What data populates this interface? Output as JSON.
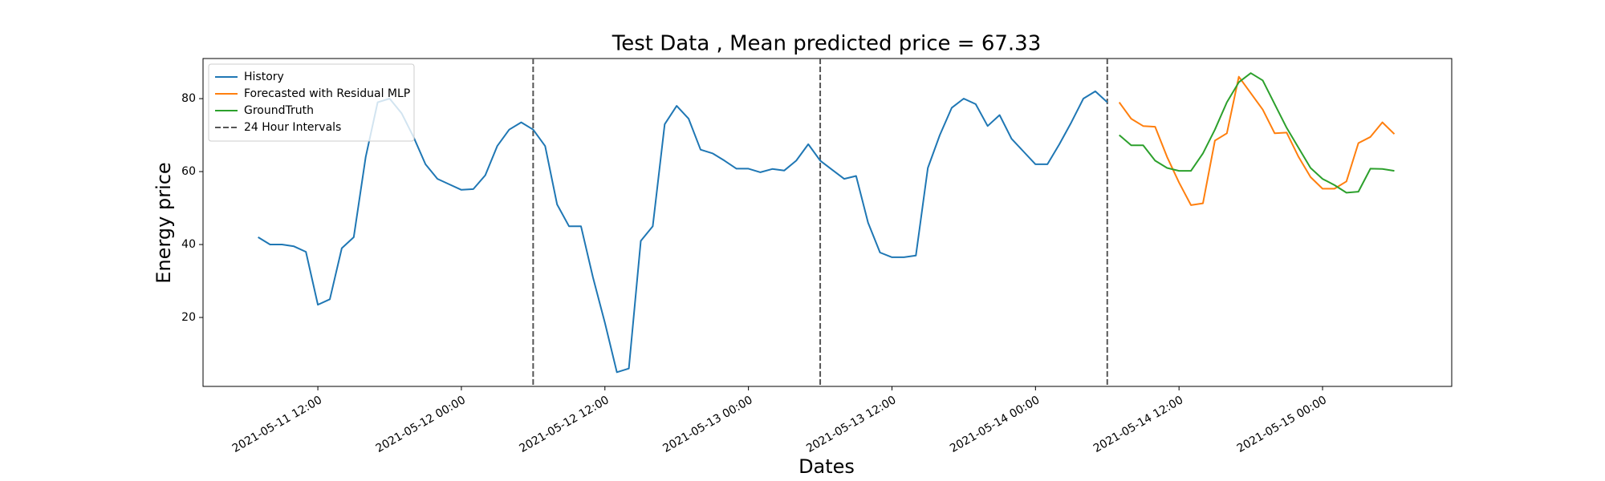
{
  "chart_data": {
    "type": "line",
    "title": "Test Data , Mean predicted price = 67.33",
    "xlabel": "Dates",
    "ylabel": "Energy price",
    "series": [
      {
        "name": "History",
        "color": "#1f77b4",
        "x": [
          "2021-05-11 07:00",
          "2021-05-11 08:00",
          "2021-05-11 09:00",
          "2021-05-11 10:00",
          "2021-05-11 11:00",
          "2021-05-11 12:00",
          "2021-05-11 13:00",
          "2021-05-11 14:00",
          "2021-05-11 15:00",
          "2021-05-11 16:00",
          "2021-05-11 17:00",
          "2021-05-11 18:00",
          "2021-05-11 19:00",
          "2021-05-11 20:00",
          "2021-05-11 21:00",
          "2021-05-11 22:00",
          "2021-05-11 23:00",
          "2021-05-12 00:00",
          "2021-05-12 01:00",
          "2021-05-12 02:00",
          "2021-05-12 03:00",
          "2021-05-12 04:00",
          "2021-05-12 05:00",
          "2021-05-12 06:00",
          "2021-05-12 07:00",
          "2021-05-12 08:00",
          "2021-05-12 09:00",
          "2021-05-12 10:00",
          "2021-05-12 11:00",
          "2021-05-12 12:00",
          "2021-05-12 13:00",
          "2021-05-12 14:00",
          "2021-05-12 15:00",
          "2021-05-12 16:00",
          "2021-05-12 17:00",
          "2021-05-12 18:00",
          "2021-05-12 19:00",
          "2021-05-12 20:00",
          "2021-05-12 21:00",
          "2021-05-12 22:00",
          "2021-05-12 23:00",
          "2021-05-13 00:00",
          "2021-05-13 01:00",
          "2021-05-13 02:00",
          "2021-05-13 03:00",
          "2021-05-13 04:00",
          "2021-05-13 05:00",
          "2021-05-13 06:00",
          "2021-05-13 07:00",
          "2021-05-13 08:00",
          "2021-05-13 09:00",
          "2021-05-13 10:00",
          "2021-05-13 11:00",
          "2021-05-13 12:00",
          "2021-05-13 13:00",
          "2021-05-13 14:00",
          "2021-05-13 15:00",
          "2021-05-13 16:00",
          "2021-05-13 17:00",
          "2021-05-13 18:00",
          "2021-05-13 19:00",
          "2021-05-13 20:00",
          "2021-05-13 21:00",
          "2021-05-13 22:00",
          "2021-05-13 23:00",
          "2021-05-14 00:00",
          "2021-05-14 01:00",
          "2021-05-14 02:00",
          "2021-05-14 03:00",
          "2021-05-14 04:00",
          "2021-05-14 05:00",
          "2021-05-14 06:00"
        ],
        "values": [
          42,
          40,
          40,
          39.5,
          38,
          23.5,
          25,
          39,
          42,
          64,
          79,
          80,
          76,
          69.5,
          62,
          58,
          56.5,
          55,
          55.2,
          59,
          67,
          71.5,
          73.5,
          71.5,
          67,
          51,
          45,
          45,
          31,
          18.5,
          5,
          6,
          41,
          45,
          73,
          78,
          74.5,
          66,
          65,
          63,
          60.8,
          60.8,
          59.8,
          60.7,
          60.3,
          63,
          67.5,
          63,
          60.5,
          58,
          58.8,
          46,
          37.8,
          36.5,
          36.5,
          37,
          61,
          70,
          77.5,
          80,
          78.5,
          72.5,
          75.5,
          69,
          65.5,
          62,
          62,
          67.5,
          73.5,
          80,
          82,
          79
        ]
      },
      {
        "name": "Forecasted with Residual MLP",
        "color": "#ff7f0e",
        "x": [
          "2021-05-14 07:00",
          "2021-05-14 08:00",
          "2021-05-14 09:00",
          "2021-05-14 10:00",
          "2021-05-14 11:00",
          "2021-05-14 12:00",
          "2021-05-14 13:00",
          "2021-05-14 14:00",
          "2021-05-14 15:00",
          "2021-05-14 16:00",
          "2021-05-14 17:00",
          "2021-05-14 18:00",
          "2021-05-14 19:00",
          "2021-05-14 20:00",
          "2021-05-14 21:00",
          "2021-05-14 22:00",
          "2021-05-14 23:00",
          "2021-05-15 00:00",
          "2021-05-15 01:00",
          "2021-05-15 02:00",
          "2021-05-15 03:00",
          "2021-05-15 04:00",
          "2021-05-15 05:00",
          "2021-05-15 06:00"
        ],
        "values": [
          79,
          74.5,
          72.5,
          72.3,
          64,
          57,
          50.8,
          51.3,
          68.5,
          70.5,
          86,
          81.5,
          77,
          70.5,
          70.7,
          64,
          58.5,
          55.3,
          55.3,
          57.3,
          67.8,
          69.5,
          73.5,
          70.3
        ]
      },
      {
        "name": "GroundTruth",
        "color": "#2ca02c",
        "x": [
          "2021-05-14 07:00",
          "2021-05-14 08:00",
          "2021-05-14 09:00",
          "2021-05-14 10:00",
          "2021-05-14 11:00",
          "2021-05-14 12:00",
          "2021-05-14 13:00",
          "2021-05-14 14:00",
          "2021-05-14 15:00",
          "2021-05-14 16:00",
          "2021-05-14 17:00",
          "2021-05-14 18:00",
          "2021-05-14 19:00",
          "2021-05-14 20:00",
          "2021-05-14 21:00",
          "2021-05-14 22:00",
          "2021-05-14 23:00",
          "2021-05-15 00:00",
          "2021-05-15 01:00",
          "2021-05-15 02:00",
          "2021-05-15 03:00",
          "2021-05-15 04:00",
          "2021-05-15 05:00",
          "2021-05-15 06:00"
        ],
        "values": [
          70,
          67.2,
          67.2,
          63,
          61,
          60.2,
          60.2,
          65,
          71.5,
          79,
          84.5,
          87,
          85,
          78.5,
          72,
          66.5,
          61,
          58,
          56.3,
          54.2,
          54.5,
          60.8,
          60.7,
          60.2
        ]
      }
    ],
    "vlines": {
      "name": "24 Hour Intervals",
      "color": "#555555",
      "x": [
        "2021-05-12 06:00",
        "2021-05-13 06:00",
        "2021-05-14 06:00"
      ]
    },
    "xlim": [
      "2021-05-11 02:24",
      "2021-05-15 10:48"
    ],
    "xticks": [
      "2021-05-11 12:00",
      "2021-05-12 00:00",
      "2021-05-12 12:00",
      "2021-05-13 00:00",
      "2021-05-13 12:00",
      "2021-05-14 00:00",
      "2021-05-14 12:00",
      "2021-05-15 00:00"
    ],
    "ylim": [
      1.1,
      91
    ],
    "yticks": [
      20,
      40,
      60,
      80
    ],
    "grid": false,
    "legend": "upper left"
  }
}
